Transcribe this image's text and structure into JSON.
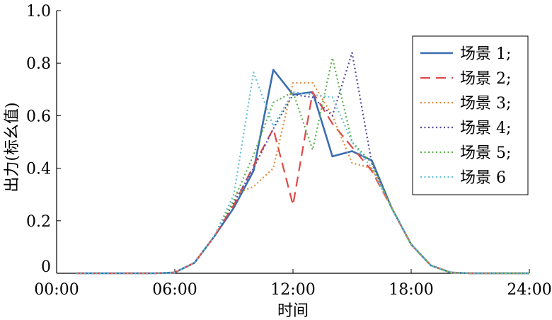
{
  "chart_data": {
    "type": "line",
    "xlabel": "时间",
    "ylabel": "出力(标幺值)",
    "xlim": [
      0,
      24
    ],
    "ylim": [
      0,
      1.0
    ],
    "x_ticks": [
      0,
      6,
      12,
      18,
      24
    ],
    "x_tick_labels": [
      "00:00",
      "06:00",
      "12:00",
      "18:00",
      "24:00"
    ],
    "y_ticks": [
      0,
      0.2,
      0.4,
      0.6,
      0.8,
      1.0
    ],
    "y_tick_labels": [
      "0",
      "0.2",
      "0.4",
      "0.6",
      "0.8",
      "1.0"
    ],
    "grid": false,
    "legend_position": "right",
    "x": [
      1,
      2,
      3,
      4,
      5,
      6,
      7,
      8,
      9,
      10,
      11,
      12,
      13,
      14,
      15,
      16,
      17,
      18,
      19,
      20,
      21,
      22,
      23,
      24
    ],
    "series": [
      {
        "name": "场景 1;",
        "color": "#3a6eb0",
        "dash": "solid",
        "values": [
          0,
          0,
          0,
          0,
          0,
          0.003,
          0.04,
          0.14,
          0.25,
          0.39,
          0.775,
          0.68,
          0.69,
          0.445,
          0.465,
          0.43,
          0.25,
          0.11,
          0.03,
          0.003,
          0,
          0,
          0,
          0
        ]
      },
      {
        "name": "场景 2;",
        "color": "#e04848",
        "dash": "dashed",
        "values": [
          0,
          0,
          0,
          0,
          0,
          0.003,
          0.04,
          0.14,
          0.26,
          0.41,
          0.55,
          0.26,
          0.69,
          0.57,
          0.48,
          0.39,
          0.25,
          0.11,
          0.03,
          0.003,
          0,
          0,
          0,
          0
        ]
      },
      {
        "name": "场景 3;",
        "color": "#e08a3c",
        "dash": "dotted",
        "values": [
          0,
          0,
          0,
          0,
          0,
          0.003,
          0.04,
          0.14,
          0.3,
          0.33,
          0.4,
          0.725,
          0.725,
          0.6,
          0.42,
          0.4,
          0.25,
          0.11,
          0.03,
          0.003,
          0,
          0,
          0,
          0
        ]
      },
      {
        "name": "场景 4;",
        "color": "#5a4a9a",
        "dash": "dotted",
        "values": [
          0,
          0,
          0,
          0,
          0,
          0.003,
          0.04,
          0.14,
          0.27,
          0.4,
          0.55,
          0.68,
          0.67,
          0.6,
          0.84,
          0.42,
          0.25,
          0.11,
          0.03,
          0.003,
          0,
          0,
          0,
          0
        ]
      },
      {
        "name": "场景 5;",
        "color": "#5ab04a",
        "dash": "dotted",
        "values": [
          0,
          0,
          0,
          0,
          0,
          0.003,
          0.04,
          0.14,
          0.28,
          0.45,
          0.65,
          0.69,
          0.47,
          0.82,
          0.5,
          0.42,
          0.25,
          0.11,
          0.03,
          0.003,
          0,
          0,
          0,
          0
        ]
      },
      {
        "name": "场景 6",
        "color": "#62c0d8",
        "dash": "dotted",
        "values": [
          0,
          0,
          0,
          0,
          0,
          0.003,
          0.04,
          0.14,
          0.3,
          0.765,
          0.56,
          0.69,
          0.68,
          0.67,
          0.5,
          0.4,
          0.25,
          0.11,
          0.03,
          0.003,
          0,
          0,
          0,
          0
        ]
      }
    ]
  }
}
